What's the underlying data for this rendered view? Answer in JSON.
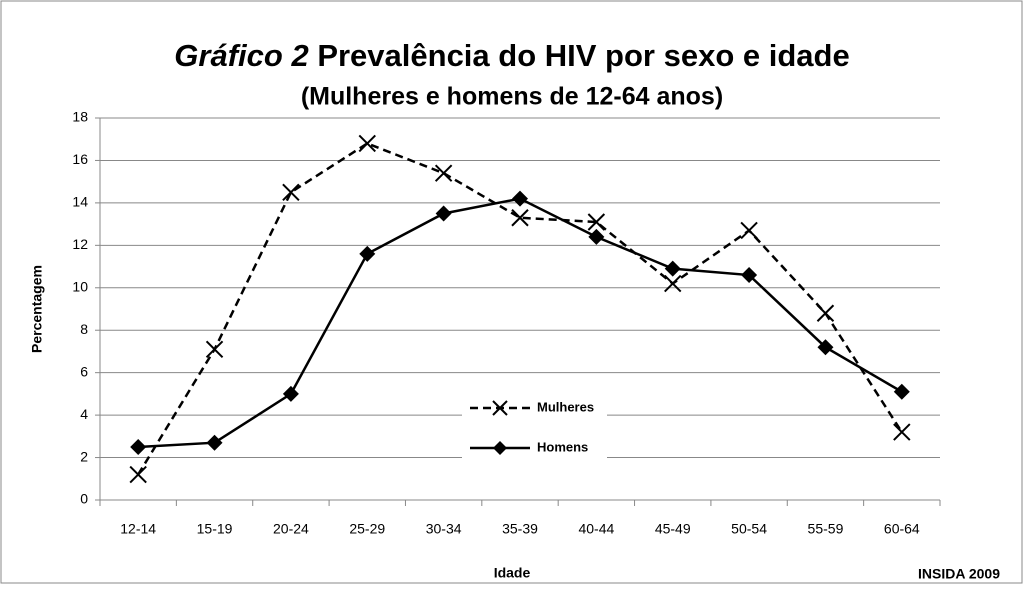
{
  "chart_data": {
    "type": "line",
    "title": {
      "italic": "Gráfico 2",
      "text": "Prevalência do HIV por sexo e idade"
    },
    "subtitle": "(Mulheres e homens de 12-64 anos)",
    "x_label": "Idade",
    "y_label": "Percentagem",
    "source": "INSIDA 2009",
    "categories": [
      "12-14",
      "15-19",
      "20-24",
      "25-29",
      "30-34",
      "35-39",
      "40-44",
      "45-49",
      "50-54",
      "55-59",
      "60-64"
    ],
    "series": [
      {
        "name": "Mulheres",
        "color": "#000000",
        "line_style": "dashed",
        "marker": "x",
        "values": [
          1.2,
          7.1,
          14.5,
          16.8,
          15.4,
          13.3,
          13.1,
          10.2,
          12.7,
          8.8,
          3.2
        ]
      },
      {
        "name": "Homens",
        "color": "#000000",
        "line_style": "solid",
        "marker": "diamond",
        "values": [
          2.5,
          2.7,
          5.0,
          11.6,
          13.5,
          14.2,
          12.4,
          10.9,
          10.6,
          7.2,
          5.1
        ]
      }
    ],
    "ylim": [
      0,
      18
    ],
    "yticks": [
      0,
      2,
      4,
      6,
      8,
      10,
      12,
      14,
      16,
      18
    ],
    "grid": true
  }
}
